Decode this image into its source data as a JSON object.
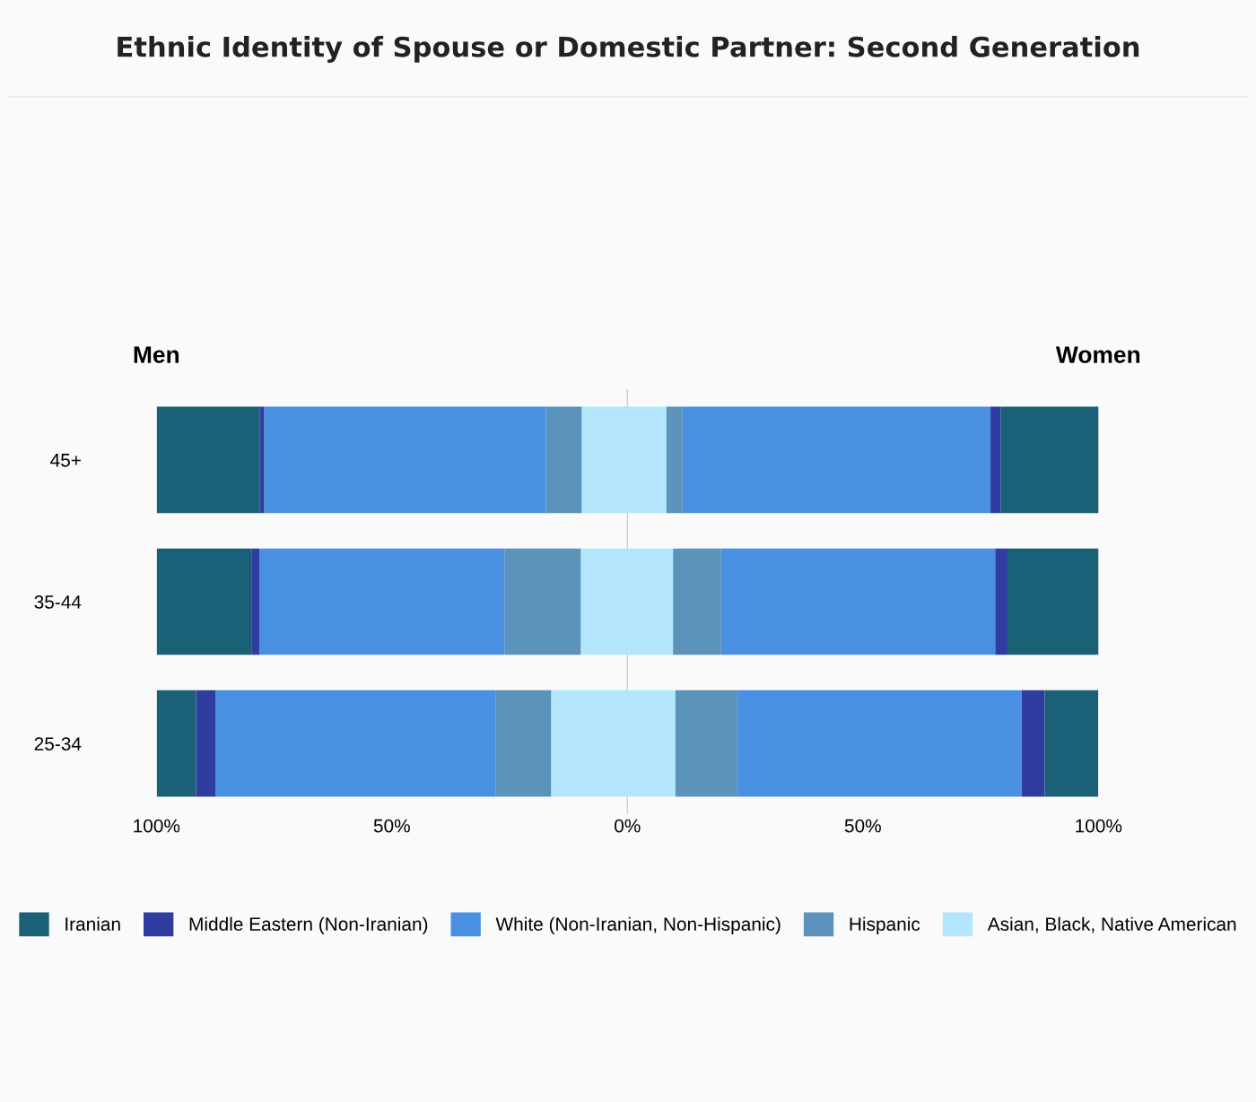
{
  "chart_data": {
    "type": "bar",
    "orientation": "horizontal",
    "stacked": true,
    "title": "Ethnic Identity of Spouse or Domestic Partner: Second Generation",
    "categories": [
      "45+",
      "35-44",
      "25-34"
    ],
    "series": [
      {
        "color": "#b3e5fc",
        "values": [
          -9.7,
          -9.9,
          -16.2
        ]
      },
      {
        "name": "Asian, Black, Native American",
        "color": "#b3e5fc",
        "values": [
          8.3,
          9.7,
          10.2
        ]
      },
      {
        "color": "#5b93bb",
        "values": [
          -7.6,
          -16.2,
          -11.7
        ]
      },
      {
        "name": "Hispanic",
        "color": "#5b93bb",
        "values": [
          3.4,
          10.2,
          13.2
        ]
      },
      {
        "color": "#4a90e2",
        "values": [
          -59.8,
          -52.0,
          -59.5
        ]
      },
      {
        "name": "White (Non-Iranian, Non-Hispanic)",
        "color": "#4a90e2",
        "values": [
          65.4,
          58.2,
          60.3
        ]
      },
      {
        "color": "#2e3d9f",
        "values": [
          -1.0,
          -1.6,
          -4.2
        ]
      },
      {
        "name": "Middle Eastern (Non-Iranian)",
        "color": "#2e3d9f",
        "values": [
          2.2,
          2.6,
          4.9
        ]
      },
      {
        "color": "#1a6178",
        "values": [
          -21.8,
          -20.2,
          -8.3
        ]
      },
      {
        "name": "Iranian",
        "color": "#1a6178",
        "values": [
          20.9,
          19.4,
          11.4
        ]
      }
    ],
    "xlim": [
      -100,
      100
    ],
    "xticks": [
      {
        "value": -100,
        "label": "100%"
      },
      {
        "value": -50,
        "label": "50%"
      },
      {
        "value": 0,
        "label": "0%"
      },
      {
        "value": 50,
        "label": "50%"
      },
      {
        "value": 100,
        "label": "100%"
      }
    ],
    "ref_lines": [
      {
        "axis": "x",
        "value": 0,
        "color": "#d0d0d0"
      }
    ],
    "annotations": [
      "Men",
      "Women"
    ],
    "grid": false,
    "legend": "bottom"
  }
}
